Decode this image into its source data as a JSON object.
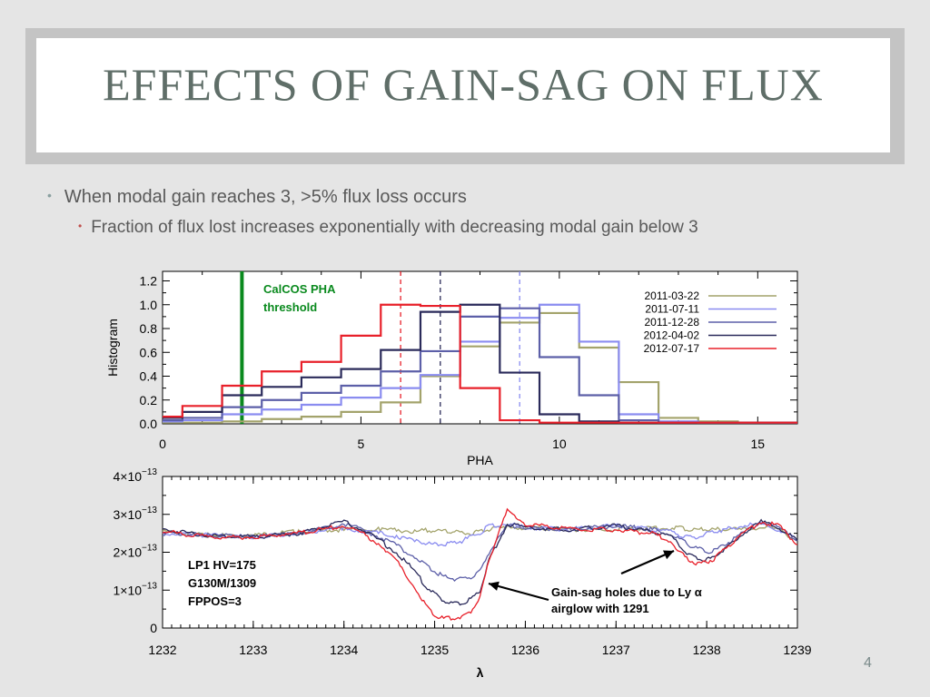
{
  "slide": {
    "title": "EFFECTS OF GAIN-SAG ON FLUX",
    "bullet_1": "When modal gain reaches 3, >5% flux loss occurs",
    "bullet_2": "Fraction of flux lost increases exponentially with decreasing modal gain below 3",
    "page_number": "4"
  },
  "chart_data": [
    {
      "type": "line",
      "xlabel": "PHA",
      "ylabel": "Histogram",
      "xlim": [
        0,
        16
      ],
      "ylim": [
        0,
        1.28
      ],
      "x_ticks": [
        "0",
        "5",
        "10",
        "15"
      ],
      "x_tick_values": [
        0,
        5,
        10,
        15
      ],
      "y_ticks": [
        "0.0",
        "0.2",
        "0.4",
        "0.6",
        "0.8",
        "1.0",
        "1.2"
      ],
      "y_tick_values": [
        0,
        0.2,
        0.4,
        0.6,
        0.8,
        1.0,
        1.2
      ],
      "step_x": [
        0,
        0.5,
        1.5,
        2.5,
        3.5,
        4.5,
        5.5,
        6.5,
        7.5,
        8.5,
        9.5,
        10.5,
        11.5,
        12.5,
        13.5,
        14.5,
        15.5,
        16
      ],
      "legend_position": "top-right",
      "series": [
        {
          "name": "2011-03-22",
          "color": "#a3a36b",
          "values": [
            0.01,
            0.01,
            0.02,
            0.04,
            0.06,
            0.1,
            0.18,
            0.4,
            0.65,
            0.85,
            0.93,
            0.64,
            0.35,
            0.05,
            0.02,
            0.01,
            0.01
          ]
        },
        {
          "name": "2011-07-11",
          "color": "#8a8cf0",
          "values": [
            0.02,
            0.03,
            0.08,
            0.12,
            0.16,
            0.22,
            0.3,
            0.41,
            0.69,
            0.89,
            1.0,
            0.69,
            0.08,
            0.02,
            0.01,
            0.01,
            0.01
          ]
        },
        {
          "name": "2011-12-28",
          "color": "#5c5fa8",
          "values": [
            0.03,
            0.05,
            0.14,
            0.2,
            0.26,
            0.32,
            0.44,
            0.61,
            0.9,
            0.97,
            0.56,
            0.24,
            0.03,
            0.01,
            0.01,
            0.01,
            0.01
          ]
        },
        {
          "name": "2012-04-02",
          "color": "#2a2a5a",
          "values": [
            0.05,
            0.1,
            0.24,
            0.31,
            0.39,
            0.46,
            0.62,
            0.94,
            1.0,
            0.43,
            0.08,
            0.02,
            0.01,
            0.01,
            0.01,
            0.01,
            0.01
          ]
        },
        {
          "name": "2012-07-17",
          "color": "#e8202a",
          "values": [
            0.06,
            0.15,
            0.32,
            0.44,
            0.52,
            0.74,
            1.0,
            0.99,
            0.3,
            0.03,
            0.01,
            0.01,
            0.01,
            0.01,
            0.01,
            0.01,
            0.01
          ]
        }
      ],
      "vertical_lines": [
        {
          "x": 2.0,
          "color": "#0a8a1e",
          "style": "solid"
        },
        {
          "x": 6.0,
          "color": "#e8202a",
          "style": "dashed"
        },
        {
          "x": 7.0,
          "color": "#2a2a5a",
          "style": "dashed"
        },
        {
          "x": 9.0,
          "color": "#8a8cf0",
          "style": "dashed"
        }
      ],
      "annotation": {
        "line1": "CalCOS PHA",
        "line2": "threshold",
        "color": "#0a8a1e"
      }
    },
    {
      "type": "line",
      "xlabel": "λ",
      "ylabel": "",
      "xlim": [
        1232,
        1239
      ],
      "ylim": [
        0,
        4e-13
      ],
      "x_ticks": [
        "1232",
        "1233",
        "1234",
        "1235",
        "1236",
        "1237",
        "1238",
        "1239"
      ],
      "x_tick_values": [
        1232,
        1233,
        1234,
        1235,
        1236,
        1237,
        1238,
        1239
      ],
      "y_ticks": [
        "0",
        "1×10",
        "2×10",
        "3×10",
        "4×10"
      ],
      "y_tick_exponent": "−13",
      "y_tick_values": [
        0,
        1e-13,
        2e-13,
        3e-13,
        4e-13
      ],
      "x": [
        1232.0,
        1232.5,
        1233.0,
        1233.5,
        1234.0,
        1234.2,
        1234.4,
        1234.6,
        1234.8,
        1234.9,
        1235.0,
        1235.1,
        1235.2,
        1235.3,
        1235.4,
        1235.5,
        1235.6,
        1235.8,
        1236.0,
        1236.5,
        1237.0,
        1237.4,
        1237.6,
        1237.7,
        1237.8,
        1237.9,
        1238.0,
        1238.1,
        1238.2,
        1238.4,
        1238.6,
        1238.8,
        1239.0
      ],
      "series": [
        {
          "name": "2011-03-22",
          "color": "#a3a36b",
          "values": [
            2.55e-13,
            2.45e-13,
            2.45e-13,
            2.55e-13,
            2.6e-13,
            2.6e-13,
            2.6e-13,
            2.58e-13,
            2.55e-13,
            2.58e-13,
            2.55e-13,
            2.55e-13,
            2.55e-13,
            2.5e-13,
            2.5e-13,
            2.55e-13,
            2.6e-13,
            2.65e-13,
            2.65e-13,
            2.6e-13,
            2.6e-13,
            2.65e-13,
            2.65e-13,
            2.65e-13,
            2.6e-13,
            2.6e-13,
            2.6e-13,
            2.6e-13,
            2.6e-13,
            2.6e-13,
            2.65e-13,
            2.6e-13,
            2.3e-13
          ]
        },
        {
          "name": "2011-07-11",
          "color": "#8a8cf0",
          "values": [
            2.5e-13,
            2.45e-13,
            2.4e-13,
            2.5e-13,
            2.65e-13,
            2.55e-13,
            2.5e-13,
            2.4e-13,
            2.3e-13,
            2.25e-13,
            2.2e-13,
            2.2e-13,
            2.25e-13,
            2.3e-13,
            2.4e-13,
            2.5e-13,
            2.7e-13,
            2.75e-13,
            2.65e-13,
            2.6e-13,
            2.7e-13,
            2.6e-13,
            2.55e-13,
            2.45e-13,
            2.4e-13,
            2.4e-13,
            2.5e-13,
            2.55e-13,
            2.6e-13,
            2.7e-13,
            2.75e-13,
            2.6e-13,
            2.3e-13
          ]
        },
        {
          "name": "2011-12-28",
          "color": "#5c5fa8",
          "values": [
            2.5e-13,
            2.45e-13,
            2.4e-13,
            2.5e-13,
            2.75e-13,
            2.6e-13,
            2.4e-13,
            2.15e-13,
            1.85e-13,
            1.65e-13,
            1.5e-13,
            1.35e-13,
            1.3e-13,
            1.3e-13,
            1.35e-13,
            1.5e-13,
            2e-13,
            2.7e-13,
            2.65e-13,
            2.6e-13,
            2.7e-13,
            2.6e-13,
            2.5e-13,
            2.35e-13,
            2.2e-13,
            2.1e-13,
            2e-13,
            2.05e-13,
            2.2e-13,
            2.5e-13,
            2.8e-13,
            2.65e-13,
            2.3e-13
          ]
        },
        {
          "name": "2012-04-02",
          "color": "#2a2a5a",
          "values": [
            2.6e-13,
            2.45e-13,
            2.4e-13,
            2.5e-13,
            2.8e-13,
            2.6e-13,
            2.3e-13,
            1.95e-13,
            1.45e-13,
            1.1e-13,
            9e-14,
            7.2e-14,
            6.5e-14,
            6.7e-14,
            7.5e-14,
            1e-13,
            1.8e-13,
            2.75e-13,
            2.65e-13,
            2.6e-13,
            2.7e-13,
            2.55e-13,
            2.4e-13,
            2.2e-13,
            1.95e-13,
            1.85e-13,
            1.8e-13,
            1.9e-13,
            2.1e-13,
            2.5e-13,
            2.8e-13,
            2.65e-13,
            2.3e-13
          ]
        },
        {
          "name": "2012-07-17",
          "color": "#e8202a",
          "values": [
            2.55e-13,
            2.4e-13,
            2.4e-13,
            2.5e-13,
            2.7e-13,
            2.5e-13,
            2.2e-13,
            1.7e-13,
            1e-13,
            6e-14,
            3.5e-14,
            2.5e-14,
            2.5e-14,
            3e-14,
            4.5e-14,
            8e-14,
            1.8e-13,
            3.1e-13,
            2.75e-13,
            2.6e-13,
            2.6e-13,
            2.5e-13,
            2.3e-13,
            2e-13,
            1.8e-13,
            1.7e-13,
            1.75e-13,
            1.85e-13,
            2.1e-13,
            2.5e-13,
            2.8e-13,
            2.7e-13,
            2.2e-13
          ]
        }
      ],
      "textbox_lines": [
        "LP1 HV=175",
        "G130M/1309",
        "FPPOS=3"
      ],
      "annotation_lines": [
        "Gain-sag holes due to Ly α",
        "airglow with 1291"
      ]
    }
  ]
}
